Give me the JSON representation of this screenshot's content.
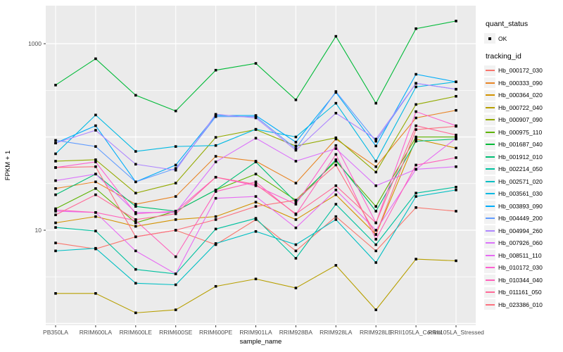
{
  "chart_data": {
    "type": "line",
    "title": "",
    "xlabel": "sample_name",
    "ylabel": "FPKM + 1",
    "y_scale": "log10",
    "ylim": [
      0.9,
      2600
    ],
    "grid": "on",
    "legend_position": "right",
    "y_ticks": [
      {
        "label": "1000",
        "value": 1000
      },
      {
        "label": "10",
        "value": 10
      }
    ],
    "categories": [
      "PB350LA",
      "RRIM600LA",
      "RRIM600LE",
      "RRIM600SE",
      "RRIM600PE",
      "RRIM901LA",
      "RRIM928BA",
      "RRIM928LA",
      "RRIM928LE",
      "RRII105LA_Control",
      "RRII105LA_Stressed"
    ],
    "legend": {
      "quant_status_title": "quant_status",
      "quant_status_items": [
        {
          "label": "OK",
          "marker": "black-point"
        }
      ],
      "tracking_title": "tracking_id"
    },
    "panel_color": "#EBEBEB",
    "gridline_color": "#FFFFFF",
    "axis_text_color": "#4D4D4D",
    "point_color": "#000000",
    "series": [
      {
        "tracking_id": "Hb_000172_030",
        "color": "#F8766D",
        "values": [
          7.3,
          6.3,
          8.5,
          10,
          7,
          13,
          6,
          14,
          6,
          17.5,
          16
        ]
      },
      {
        "tracking_id": "Hb_000333_090",
        "color": "#E88526",
        "values": [
          28,
          33,
          19,
          23,
          62,
          55,
          32,
          95,
          48,
          160,
          193
        ]
      },
      {
        "tracking_id": "Hb_000364_020",
        "color": "#D39200",
        "values": [
          12,
          14,
          11,
          13,
          14,
          20,
          13,
          24,
          9,
          95,
          76
        ]
      },
      {
        "tracking_id": "Hb_000722_040",
        "color": "#B79F00",
        "values": [
          2.1,
          2.1,
          1.3,
          1.4,
          2.5,
          3.0,
          2.4,
          4.2,
          1.4,
          4.9,
          4.7
        ]
      },
      {
        "tracking_id": "Hb_000907_090",
        "color": "#93AA00",
        "values": [
          55,
          57,
          25,
          32,
          99,
          120,
          80,
          98,
          42,
          223,
          273
        ]
      },
      {
        "tracking_id": "Hb_000975_110",
        "color": "#5EB300",
        "values": [
          17,
          28,
          12,
          16,
          27,
          40,
          21,
          55,
          18,
          100,
          100
        ]
      },
      {
        "tracking_id": "Hb_001687_040",
        "color": "#00BA38",
        "values": [
          360,
          690,
          280,
          190,
          520,
          615,
          250,
          1200,
          230,
          1450,
          1750
        ]
      },
      {
        "tracking_id": "Hb_001912_010",
        "color": "#00BF74",
        "values": [
          24,
          40,
          18,
          16,
          27,
          54,
          20,
          57,
          16,
          90,
          95
        ]
      },
      {
        "tracking_id": "Hb_002214_050",
        "color": "#00C19F",
        "values": [
          10.7,
          9.8,
          3.8,
          3.4,
          10.3,
          13.4,
          5,
          19,
          7,
          25,
          29
        ]
      },
      {
        "tracking_id": "Hb_002571_020",
        "color": "#00BFC4",
        "values": [
          6,
          6.4,
          2.7,
          2.6,
          7.2,
          9.7,
          7,
          13,
          4.5,
          23,
          27
        ]
      },
      {
        "tracking_id": "Hb_003561_030",
        "color": "#00B9E3",
        "values": [
          66,
          172,
          70,
          79,
          81,
          121,
          100,
          230,
          55,
          344,
          390
        ]
      },
      {
        "tracking_id": "Hb_003893_090",
        "color": "#00ADFA",
        "values": [
          86,
          132,
          33,
          50,
          170,
          170,
          88,
          300,
          80,
          470,
          390
        ]
      },
      {
        "tracking_id": "Hb_004449_200",
        "color": "#619CFF",
        "values": [
          92,
          79,
          33,
          46,
          165,
          165,
          75,
          307,
          90,
          376,
          325
        ]
      },
      {
        "tracking_id": "Hb_004994_260",
        "color": "#AE87FF",
        "values": [
          86,
          118,
          51,
          44,
          175,
          160,
          72,
          180,
          95,
          376,
          325
        ]
      },
      {
        "tracking_id": "Hb_007926_060",
        "color": "#DB72FB",
        "values": [
          34,
          40,
          15.5,
          15.5,
          54,
          97,
          55,
          75,
          30,
          45,
          48
        ]
      },
      {
        "tracking_id": "Hb_008511_110",
        "color": "#E76BF3",
        "values": [
          16,
          15.5,
          6,
          3.4,
          22,
          23,
          10.6,
          27,
          10,
          45,
          97
        ]
      },
      {
        "tracking_id": "Hb_010172_030",
        "color": "#FD61D1",
        "values": [
          47,
          54,
          15,
          16,
          37,
          30,
          19,
          81,
          12,
          187,
          132
        ]
      },
      {
        "tracking_id": "Hb_010344_040",
        "color": "#FF62BC",
        "values": [
          16.5,
          15.5,
          12.7,
          5.2,
          26,
          33,
          14.7,
          65,
          8,
          50,
          60
        ]
      },
      {
        "tracking_id": "Hb_011161_050",
        "color": "#FF6A98",
        "values": [
          14.6,
          24,
          13,
          15,
          37,
          31,
          15,
          30,
          12,
          132,
          105
        ]
      },
      {
        "tracking_id": "Hb_023386_010",
        "color": "#FC717F",
        "values": [
          47,
          48,
          8.5,
          10,
          13,
          18,
          21,
          50,
          9,
          120,
          130
        ]
      }
    ]
  }
}
